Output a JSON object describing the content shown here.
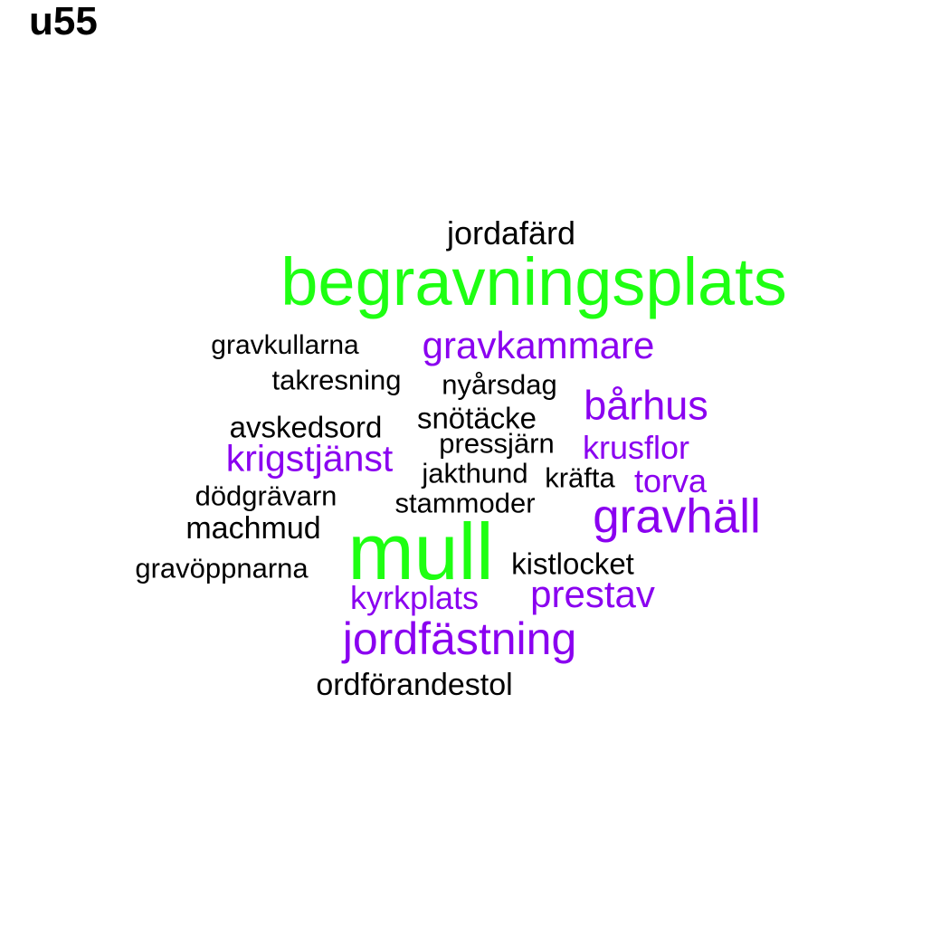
{
  "title": "u55",
  "colors": {
    "black": "#000000",
    "purple": "#8a00f0",
    "green": "#1eff12"
  },
  "words": [
    {
      "text": "jordafärd",
      "color": "black"
    },
    {
      "text": "begravningsplats",
      "color": "green"
    },
    {
      "text": "gravkullarna",
      "color": "black"
    },
    {
      "text": "gravkammare",
      "color": "purple"
    },
    {
      "text": "takresning",
      "color": "black"
    },
    {
      "text": "nyårsdag",
      "color": "black"
    },
    {
      "text": "bårhus",
      "color": "purple"
    },
    {
      "text": "avskedsord",
      "color": "black"
    },
    {
      "text": "snötäcke",
      "color": "black"
    },
    {
      "text": "pressjärn",
      "color": "black"
    },
    {
      "text": "krusflor",
      "color": "purple"
    },
    {
      "text": "krigstjänst",
      "color": "purple"
    },
    {
      "text": "jakthund",
      "color": "black"
    },
    {
      "text": "kräfta",
      "color": "black"
    },
    {
      "text": "torva",
      "color": "purple"
    },
    {
      "text": "dödgrävarn",
      "color": "black"
    },
    {
      "text": "stammoder",
      "color": "black"
    },
    {
      "text": "gravhäll",
      "color": "purple"
    },
    {
      "text": "machmud",
      "color": "black"
    },
    {
      "text": "mull",
      "color": "green"
    },
    {
      "text": "gravöppnarna",
      "color": "black"
    },
    {
      "text": "kistlocket",
      "color": "black"
    },
    {
      "text": "kyrkplats",
      "color": "purple"
    },
    {
      "text": "prestav",
      "color": "purple"
    },
    {
      "text": "jordfästning",
      "color": "purple"
    },
    {
      "text": "ordförandestol",
      "color": "black"
    }
  ]
}
